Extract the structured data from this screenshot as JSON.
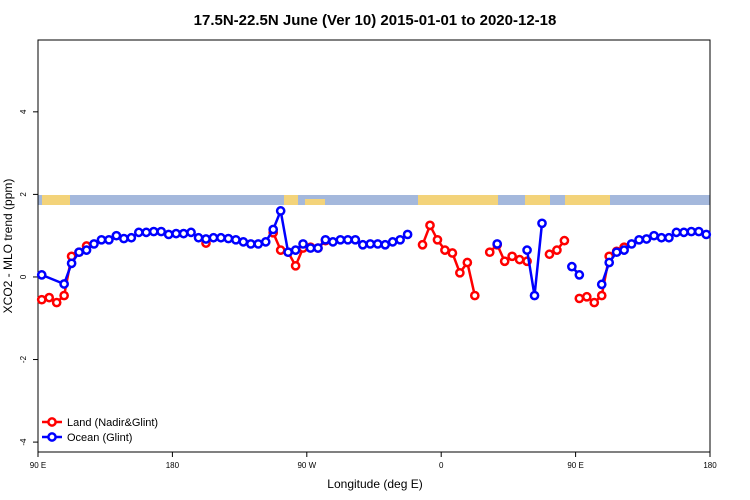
{
  "chart_data": {
    "type": "line",
    "title": "17.5N-22.5N June (Ver 10)   2015-01-01 to 2020-12-18",
    "x_label": "Longitude (deg E)",
    "y_label": "XCO2 - MLO trend (ppm)",
    "xlim": [
      90,
      540
    ],
    "xticks": [
      {
        "value": 90,
        "label": "90 E"
      },
      {
        "value": 180,
        "label": "180"
      },
      {
        "value": 270,
        "label": "90 W"
      },
      {
        "value": 360,
        "label": "0"
      },
      {
        "value": 450,
        "label": "90 E"
      },
      {
        "value": 540,
        "label": "180"
      }
    ],
    "ylim": [
      -4.24,
      5.74
    ],
    "yticks": [
      -4,
      -2,
      0,
      2,
      4
    ],
    "legend": "bottom-left",
    "series": [
      {
        "name": "Land (Nadir&Glint)",
        "color": "#ff0000",
        "x": [
          92.5,
          97.5,
          102.5,
          107.5,
          112.5,
          117.5,
          122.5,
          127.5,
          202.5,
          207.5,
          247.5,
          252.5,
          257.5,
          262.5,
          267.5,
          272.5,
          277.5,
          282.5,
          287.5,
          347.5,
          352.5,
          357.5,
          362.5,
          367.5,
          372.5,
          377.5,
          382.5,
          387.5,
          392.5,
          397.5,
          402.5,
          407.5,
          412.5,
          417.5,
          422.5,
          432.5,
          437.5,
          442.5,
          447.5,
          452.5,
          457.5,
          462.5,
          467.5,
          472.5,
          477.5,
          482.5
        ],
        "values": [
          -0.55,
          -0.5,
          -0.62,
          -0.45,
          0.5,
          0.6,
          0.75,
          null,
          0.82,
          null,
          1.07,
          0.65,
          0.6,
          0.27,
          0.7,
          0.72,
          0.7,
          0.88,
          null,
          0.78,
          1.25,
          0.9,
          0.65,
          0.58,
          0.1,
          0.35,
          -0.45,
          null,
          0.6,
          0.78,
          0.38,
          0.5,
          0.42,
          0.38,
          null,
          0.55,
          0.65,
          0.88,
          null,
          -0.52,
          -0.48,
          -0.62,
          -0.45,
          0.5,
          0.62,
          0.72
        ]
      },
      {
        "name": "Ocean (Glint)",
        "color": "#0000ff",
        "x": [
          92.5,
          107.5,
          112.5,
          117.5,
          122.5,
          127.5,
          132.5,
          137.5,
          142.5,
          147.5,
          152.5,
          157.5,
          162.5,
          167.5,
          172.5,
          177.5,
          182.5,
          187.5,
          192.5,
          197.5,
          202.5,
          207.5,
          212.5,
          217.5,
          222.5,
          227.5,
          232.5,
          237.5,
          242.5,
          247.5,
          252.5,
          257.5,
          262.5,
          267.5,
          272.5,
          277.5,
          282.5,
          287.5,
          292.5,
          297.5,
          302.5,
          307.5,
          312.5,
          317.5,
          322.5,
          327.5,
          332.5,
          337.5,
          342.5,
          397.5,
          402.5,
          417.5,
          422.5,
          427.5,
          432.5,
          447.5,
          452.5,
          457.5,
          467.5,
          472.5,
          477.5,
          482.5,
          487.5,
          492.5,
          497.5,
          502.5,
          507.5,
          512.5,
          517.5,
          522.5,
          527.5,
          532.5,
          537.5
        ],
        "values": [
          0.05,
          -0.17,
          0.33,
          0.6,
          0.65,
          0.8,
          0.9,
          0.9,
          1.0,
          0.93,
          0.95,
          1.08,
          1.08,
          1.1,
          1.1,
          1.03,
          1.05,
          1.05,
          1.08,
          0.95,
          0.92,
          0.95,
          0.95,
          0.93,
          0.9,
          0.85,
          0.8,
          0.8,
          0.85,
          1.15,
          1.6,
          0.6,
          0.65,
          0.8,
          0.7,
          0.7,
          0.9,
          0.85,
          0.9,
          0.9,
          0.9,
          0.78,
          0.8,
          0.8,
          0.78,
          0.85,
          0.9,
          1.03,
          null,
          0.8,
          null,
          0.65,
          -0.45,
          1.3,
          null,
          0.25,
          0.05,
          null,
          -0.18,
          0.35,
          0.6,
          0.65,
          0.8,
          0.9,
          0.92,
          1.0,
          0.95,
          0.95,
          1.08,
          1.08,
          1.1,
          1.1,
          1.03
        ]
      }
    ]
  }
}
